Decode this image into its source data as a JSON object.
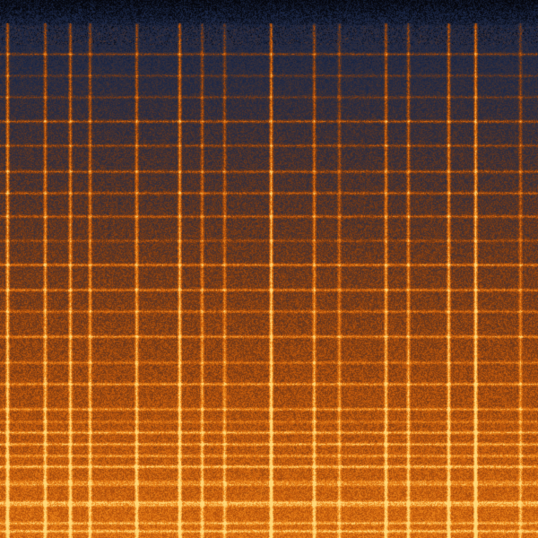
{
  "image": {
    "kind": "spectrogram",
    "colormap": [
      "#05060c",
      "#1b2848",
      "#3a3038",
      "#7a3a14",
      "#c45a0c",
      "#f08a1c",
      "#ffd878"
    ]
  }
}
